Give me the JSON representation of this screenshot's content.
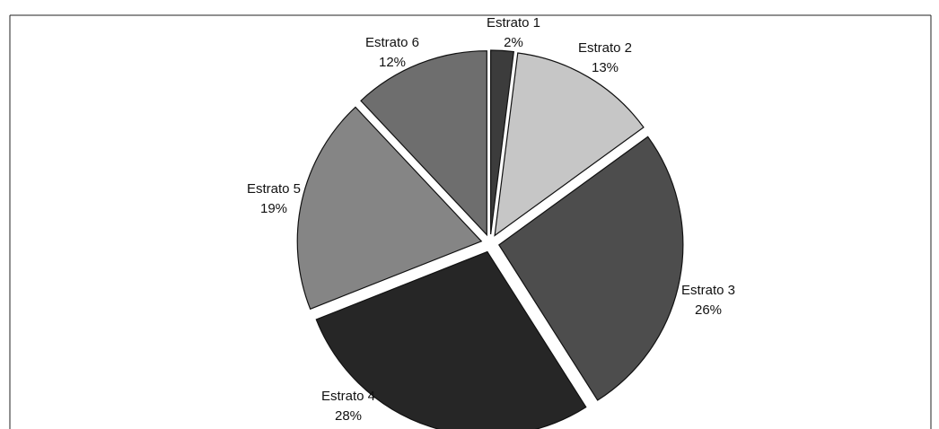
{
  "chart_data": {
    "type": "pie",
    "slices": [
      {
        "label": "Estrato 1",
        "value": 2,
        "percent_label": "2%",
        "color": "#3c3c3c"
      },
      {
        "label": "Estrato 2",
        "value": 13,
        "percent_label": "13%",
        "color": "#c6c6c6"
      },
      {
        "label": "Estrato 3",
        "value": 26,
        "percent_label": "26%",
        "color": "#4d4d4d"
      },
      {
        "label": "Estrato 4",
        "value": 28,
        "percent_label": "28%",
        "color": "#262626"
      },
      {
        "label": "Estrato 5",
        "value": 19,
        "percent_label": "19%",
        "color": "#858585"
      },
      {
        "label": "Estrato 6",
        "value": 12,
        "percent_label": "12%",
        "color": "#6e6e6e"
      }
    ],
    "start_angle": "top",
    "direction": "clockwise",
    "exploded": true,
    "legend": "none"
  }
}
